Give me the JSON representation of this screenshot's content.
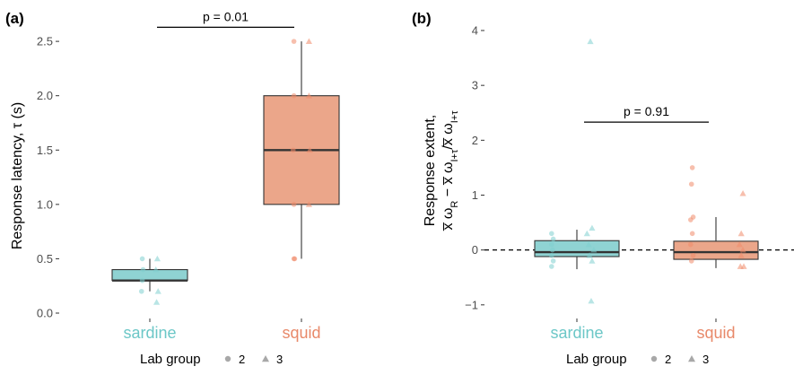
{
  "colors": {
    "sardine": "#8fd3d3",
    "squid": "#eba68a",
    "sardine_text": "#6cc7c7",
    "squid_text": "#e8896a",
    "point_sardine": "#7fcfcf",
    "point_squid": "#f08a6a",
    "legend_point": "#a8a8a8"
  },
  "legend": {
    "title": "Lab group",
    "items": [
      {
        "label": "2",
        "shape": "circle"
      },
      {
        "label": "3",
        "shape": "triangle"
      }
    ]
  },
  "chart_data": [
    {
      "id": "a",
      "type": "box",
      "panel_label": "(a)",
      "title": "",
      "xlabel": "",
      "ylabel": "Response latency, τ (s)",
      "ylim": [
        0,
        2.6
      ],
      "yticks": [
        0.0,
        0.5,
        1.0,
        1.5,
        2.0,
        2.5
      ],
      "ytick_labels": [
        "0.0",
        "0.5",
        "1.0",
        "1.5",
        "2.0",
        "2.5"
      ],
      "categories": [
        "sardine",
        "squid"
      ],
      "boxes": [
        {
          "category": "sardine",
          "q1": 0.3,
          "median": 0.3,
          "q3": 0.4,
          "whisker_low": 0.2,
          "whisker_high": 0.5
        },
        {
          "category": "squid",
          "q1": 1.0,
          "median": 1.5,
          "q3": 2.0,
          "whisker_low": 0.5,
          "whisker_high": 2.5
        }
      ],
      "points": [
        {
          "category": "sardine",
          "group": "2",
          "y": 0.5,
          "offset": -0.1
        },
        {
          "category": "sardine",
          "group": "2",
          "y": 0.4,
          "offset": -0.09
        },
        {
          "category": "sardine",
          "group": "2",
          "y": 0.3,
          "offset": -0.1
        },
        {
          "category": "sardine",
          "group": "2",
          "y": 0.2,
          "offset": -0.11
        },
        {
          "category": "sardine",
          "group": "3",
          "y": 0.5,
          "offset": 0.1
        },
        {
          "category": "sardine",
          "group": "3",
          "y": 0.4,
          "offset": 0.08
        },
        {
          "category": "sardine",
          "group": "3",
          "y": 0.2,
          "offset": 0.11
        },
        {
          "category": "sardine",
          "group": "3",
          "y": 0.1,
          "offset": 0.09
        },
        {
          "category": "squid",
          "group": "2",
          "y": 2.5,
          "offset": -0.1
        },
        {
          "category": "squid",
          "group": "2",
          "y": 2.0,
          "offset": -0.1
        },
        {
          "category": "squid",
          "group": "2",
          "y": 1.5,
          "offset": -0.11
        },
        {
          "category": "squid",
          "group": "2",
          "y": 1.0,
          "offset": -0.1
        },
        {
          "category": "squid",
          "group": "2",
          "y": 0.5,
          "offset": -0.1
        },
        {
          "category": "squid",
          "group": "2",
          "y": 0.5,
          "offset": -0.09
        },
        {
          "category": "squid",
          "group": "3",
          "y": 2.5,
          "offset": 0.1
        },
        {
          "category": "squid",
          "group": "3",
          "y": 2.0,
          "offset": 0.1
        },
        {
          "category": "squid",
          "group": "3",
          "y": 1.5,
          "offset": 0.11
        },
        {
          "category": "squid",
          "group": "3",
          "y": 1.0,
          "offset": 0.1
        }
      ],
      "annotations": [
        {
          "text": "p = 0.01",
          "y": 2.63,
          "from": "sardine",
          "to": "squid"
        }
      ],
      "reference_line": null,
      "grid": false
    },
    {
      "id": "b",
      "type": "box",
      "panel_label": "(b)",
      "title": "",
      "xlabel": "",
      "ylabel_line1": "Response extent,",
      "ylabel_line2": "x̅ ω",
      "ylabel_sub_r": "R",
      "ylabel_minus": " − x̅ ω",
      "ylabel_sub_i1": "I+τ",
      "ylabel_slash": "/x̅ ω",
      "ylabel_sub_i2": "I+τ",
      "ylim": [
        -1.15,
        4.0
      ],
      "yticks": [
        -1,
        0,
        1,
        2,
        3,
        4
      ],
      "ytick_labels": [
        "−1",
        "0",
        "1",
        "2",
        "3",
        "4"
      ],
      "categories": [
        "sardine",
        "squid"
      ],
      "boxes": [
        {
          "category": "sardine",
          "q1": -0.12,
          "median": -0.04,
          "q3": 0.17,
          "whisker_low": -0.35,
          "whisker_high": 0.37
        },
        {
          "category": "squid",
          "q1": -0.17,
          "median": -0.04,
          "q3": 0.16,
          "whisker_low": -0.33,
          "whisker_high": 0.6
        }
      ],
      "points": [
        {
          "category": "sardine",
          "group": "2",
          "y": 0.3,
          "offset": -0.3
        },
        {
          "category": "sardine",
          "group": "2",
          "y": 0.2,
          "offset": -0.28
        },
        {
          "category": "sardine",
          "group": "2",
          "y": 0.1,
          "offset": -0.3
        },
        {
          "category": "sardine",
          "group": "2",
          "y": 0.0,
          "offset": -0.29
        },
        {
          "category": "sardine",
          "group": "2",
          "y": -0.1,
          "offset": -0.3
        },
        {
          "category": "sardine",
          "group": "2",
          "y": -0.2,
          "offset": -0.28
        },
        {
          "category": "sardine",
          "group": "2",
          "y": -0.3,
          "offset": -0.3
        },
        {
          "category": "sardine",
          "group": "3",
          "y": 3.8,
          "offset": 0.16
        },
        {
          "category": "sardine",
          "group": "3",
          "y": 0.4,
          "offset": 0.18
        },
        {
          "category": "sardine",
          "group": "3",
          "y": 0.3,
          "offset": 0.12
        },
        {
          "category": "sardine",
          "group": "3",
          "y": 0.1,
          "offset": 0.14
        },
        {
          "category": "sardine",
          "group": "3",
          "y": 0.0,
          "offset": 0.2
        },
        {
          "category": "sardine",
          "group": "3",
          "y": -0.1,
          "offset": 0.15
        },
        {
          "category": "sardine",
          "group": "3",
          "y": -0.2,
          "offset": 0.18
        },
        {
          "category": "sardine",
          "group": "3",
          "y": -0.93,
          "offset": 0.17
        },
        {
          "category": "squid",
          "group": "2",
          "y": 1.5,
          "offset": -0.28
        },
        {
          "category": "squid",
          "group": "2",
          "y": 1.2,
          "offset": -0.29
        },
        {
          "category": "squid",
          "group": "2",
          "y": 0.6,
          "offset": -0.27
        },
        {
          "category": "squid",
          "group": "2",
          "y": 0.55,
          "offset": -0.3
        },
        {
          "category": "squid",
          "group": "2",
          "y": 0.3,
          "offset": -0.28
        },
        {
          "category": "squid",
          "group": "2",
          "y": 0.1,
          "offset": -0.3
        },
        {
          "category": "squid",
          "group": "2",
          "y": -0.1,
          "offset": -0.27
        },
        {
          "category": "squid",
          "group": "2",
          "y": -0.2,
          "offset": -0.29
        },
        {
          "category": "squid",
          "group": "3",
          "y": 1.03,
          "offset": 0.32
        },
        {
          "category": "squid",
          "group": "3",
          "y": 0.3,
          "offset": 0.3
        },
        {
          "category": "squid",
          "group": "3",
          "y": 0.1,
          "offset": 0.28
        },
        {
          "category": "squid",
          "group": "3",
          "y": 0.0,
          "offset": 0.32
        },
        {
          "category": "squid",
          "group": "3",
          "y": -0.1,
          "offset": 0.3
        },
        {
          "category": "squid",
          "group": "3",
          "y": -0.3,
          "offset": 0.33
        },
        {
          "category": "squid",
          "group": "3",
          "y": -0.3,
          "offset": 0.29
        }
      ],
      "annotations": [
        {
          "text": "p = 0.91",
          "y": 2.33,
          "from": "sardine",
          "to": "squid"
        }
      ],
      "reference_line": {
        "y": 0,
        "style": "dashed"
      },
      "grid": false
    }
  ]
}
